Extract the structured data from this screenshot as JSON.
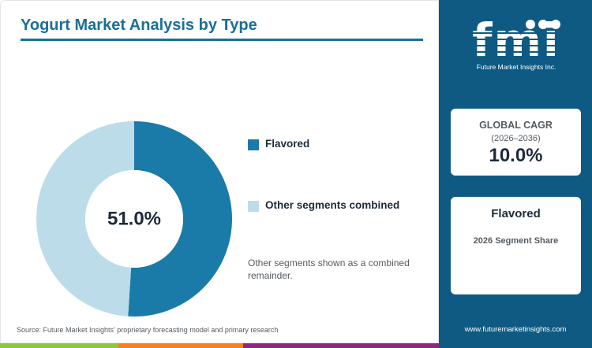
{
  "title": "Yogurt Market Analysis by Type",
  "chart_data": {
    "type": "pie",
    "donut": true,
    "center_label": "51.0%",
    "slices": [
      {
        "name": "Flavored",
        "value": 51.0,
        "color": "#1a7ba8"
      },
      {
        "name": "Other segments combined",
        "value": 49.0,
        "color": "#bcdcea"
      }
    ]
  },
  "legend": [
    {
      "label": "Flavored",
      "color": "#1a7ba8"
    },
    {
      "label": "Other segments combined",
      "color": "#bcdcea"
    }
  ],
  "note": "Other segments shown as a combined remainder.",
  "source": "Source: Future Market Insights' proprietary forecasting model and primary research",
  "brand": {
    "logo_text": "fmi",
    "tagline": "Future Market Insights Inc.",
    "website": "www.futuremarketinsights.com",
    "panel_color": "#0e5a82"
  },
  "cagr_card": {
    "label": "GLOBAL CAGR",
    "period": "(2026–2036)",
    "value": "10.0%"
  },
  "segment_card": {
    "name": "Flavored",
    "caption": "2026 Segment Share"
  },
  "bottom_bar_colors": [
    "#8dc63f",
    "#f5821f",
    "#8a2a7f"
  ]
}
